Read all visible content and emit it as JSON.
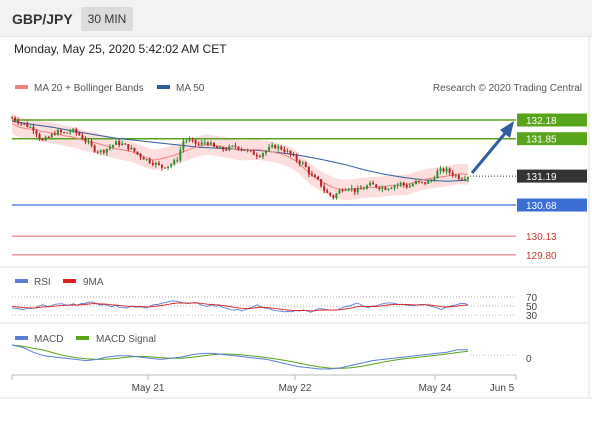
{
  "header": {
    "symbol": "GBP/JPY",
    "timeframe": "30 MIN",
    "timestamp": "Monday, May 25, 2020 5:42:02 AM CET"
  },
  "legend": {
    "ma20": "MA 20 + Bollinger Bands",
    "ma50": "MA 50",
    "copyright": "Research © 2020 Trading Central",
    "rsi": "RSI",
    "rsi_ma": "9MA",
    "macd": "MACD",
    "macd_signal": "MACD Signal"
  },
  "levels": [
    {
      "value": 132.18,
      "label": "132.18",
      "kind": "resistance"
    },
    {
      "value": 131.85,
      "label": "131.85",
      "kind": "resistance"
    },
    {
      "value": 131.19,
      "label": "131.19",
      "kind": "last"
    },
    {
      "value": 130.68,
      "label": "130.68",
      "kind": "pivot"
    },
    {
      "value": 130.13,
      "label": "130.13",
      "kind": "support"
    },
    {
      "value": 129.8,
      "label": "129.80",
      "kind": "support"
    }
  ],
  "rsi_ticks": [
    "70",
    "50",
    "30"
  ],
  "macd_ticks": [
    "0"
  ],
  "x_ticks": [
    "May 21",
    "May 22",
    "May 24",
    "Jun 5"
  ],
  "colors": {
    "up": "#2e8b2e",
    "down": "#b22222",
    "ma20": "#f08080",
    "band": "#fbd3d3",
    "ma50": "#2f5d9c",
    "green_level": "#58a51b",
    "blue_level": "#3b6fd4",
    "red_level": "#e06060",
    "last_price": "#333333",
    "rsi": "#5b7fd6",
    "rsi_ma": "#e02020",
    "macd": "#5b7fd6",
    "macd_signal": "#58a51b",
    "arrow": "#2e5e9e"
  },
  "chart_data": {
    "type": "candlestick",
    "timeframe": "30 MIN",
    "x_ticks": [
      "May 21",
      "May 22",
      "May 24",
      "Jun 5"
    ],
    "close_path": [
      132.22,
      132.14,
      132.08,
      132.02,
      131.8,
      131.88,
      131.98,
      131.94,
      132.0,
      131.92,
      131.8,
      131.66,
      131.62,
      131.7,
      131.78,
      131.74,
      131.66,
      131.56,
      131.48,
      131.42,
      131.35,
      131.38,
      131.46,
      131.84,
      131.8,
      131.74,
      131.8,
      131.7,
      131.66,
      131.68,
      131.72,
      131.66,
      131.6,
      131.56,
      131.64,
      131.72,
      131.68,
      131.6,
      131.48,
      131.4,
      131.2,
      131.1,
      130.9,
      130.82,
      130.96,
      131.0,
      130.92,
      130.98,
      131.04,
      131.0,
      130.98,
      131.02,
      131.06,
      131.0,
      131.08,
      131.06,
      131.1,
      131.28,
      131.3,
      131.22,
      131.16,
      131.19
    ],
    "ma50_path": [
      132.16,
      132.1,
      132.05,
      131.98,
      131.92,
      131.86,
      131.82,
      131.78,
      131.74,
      131.7,
      131.68,
      131.66,
      131.64,
      131.6,
      131.55,
      131.48,
      131.4,
      131.3,
      131.22,
      131.16,
      131.12,
      131.1,
      131.12
    ],
    "y_range": [
      129.7,
      132.3
    ],
    "rsi_range": [
      30,
      70
    ],
    "levels": [
      132.18,
      131.85,
      131.19,
      130.68,
      130.13,
      129.8
    ]
  }
}
